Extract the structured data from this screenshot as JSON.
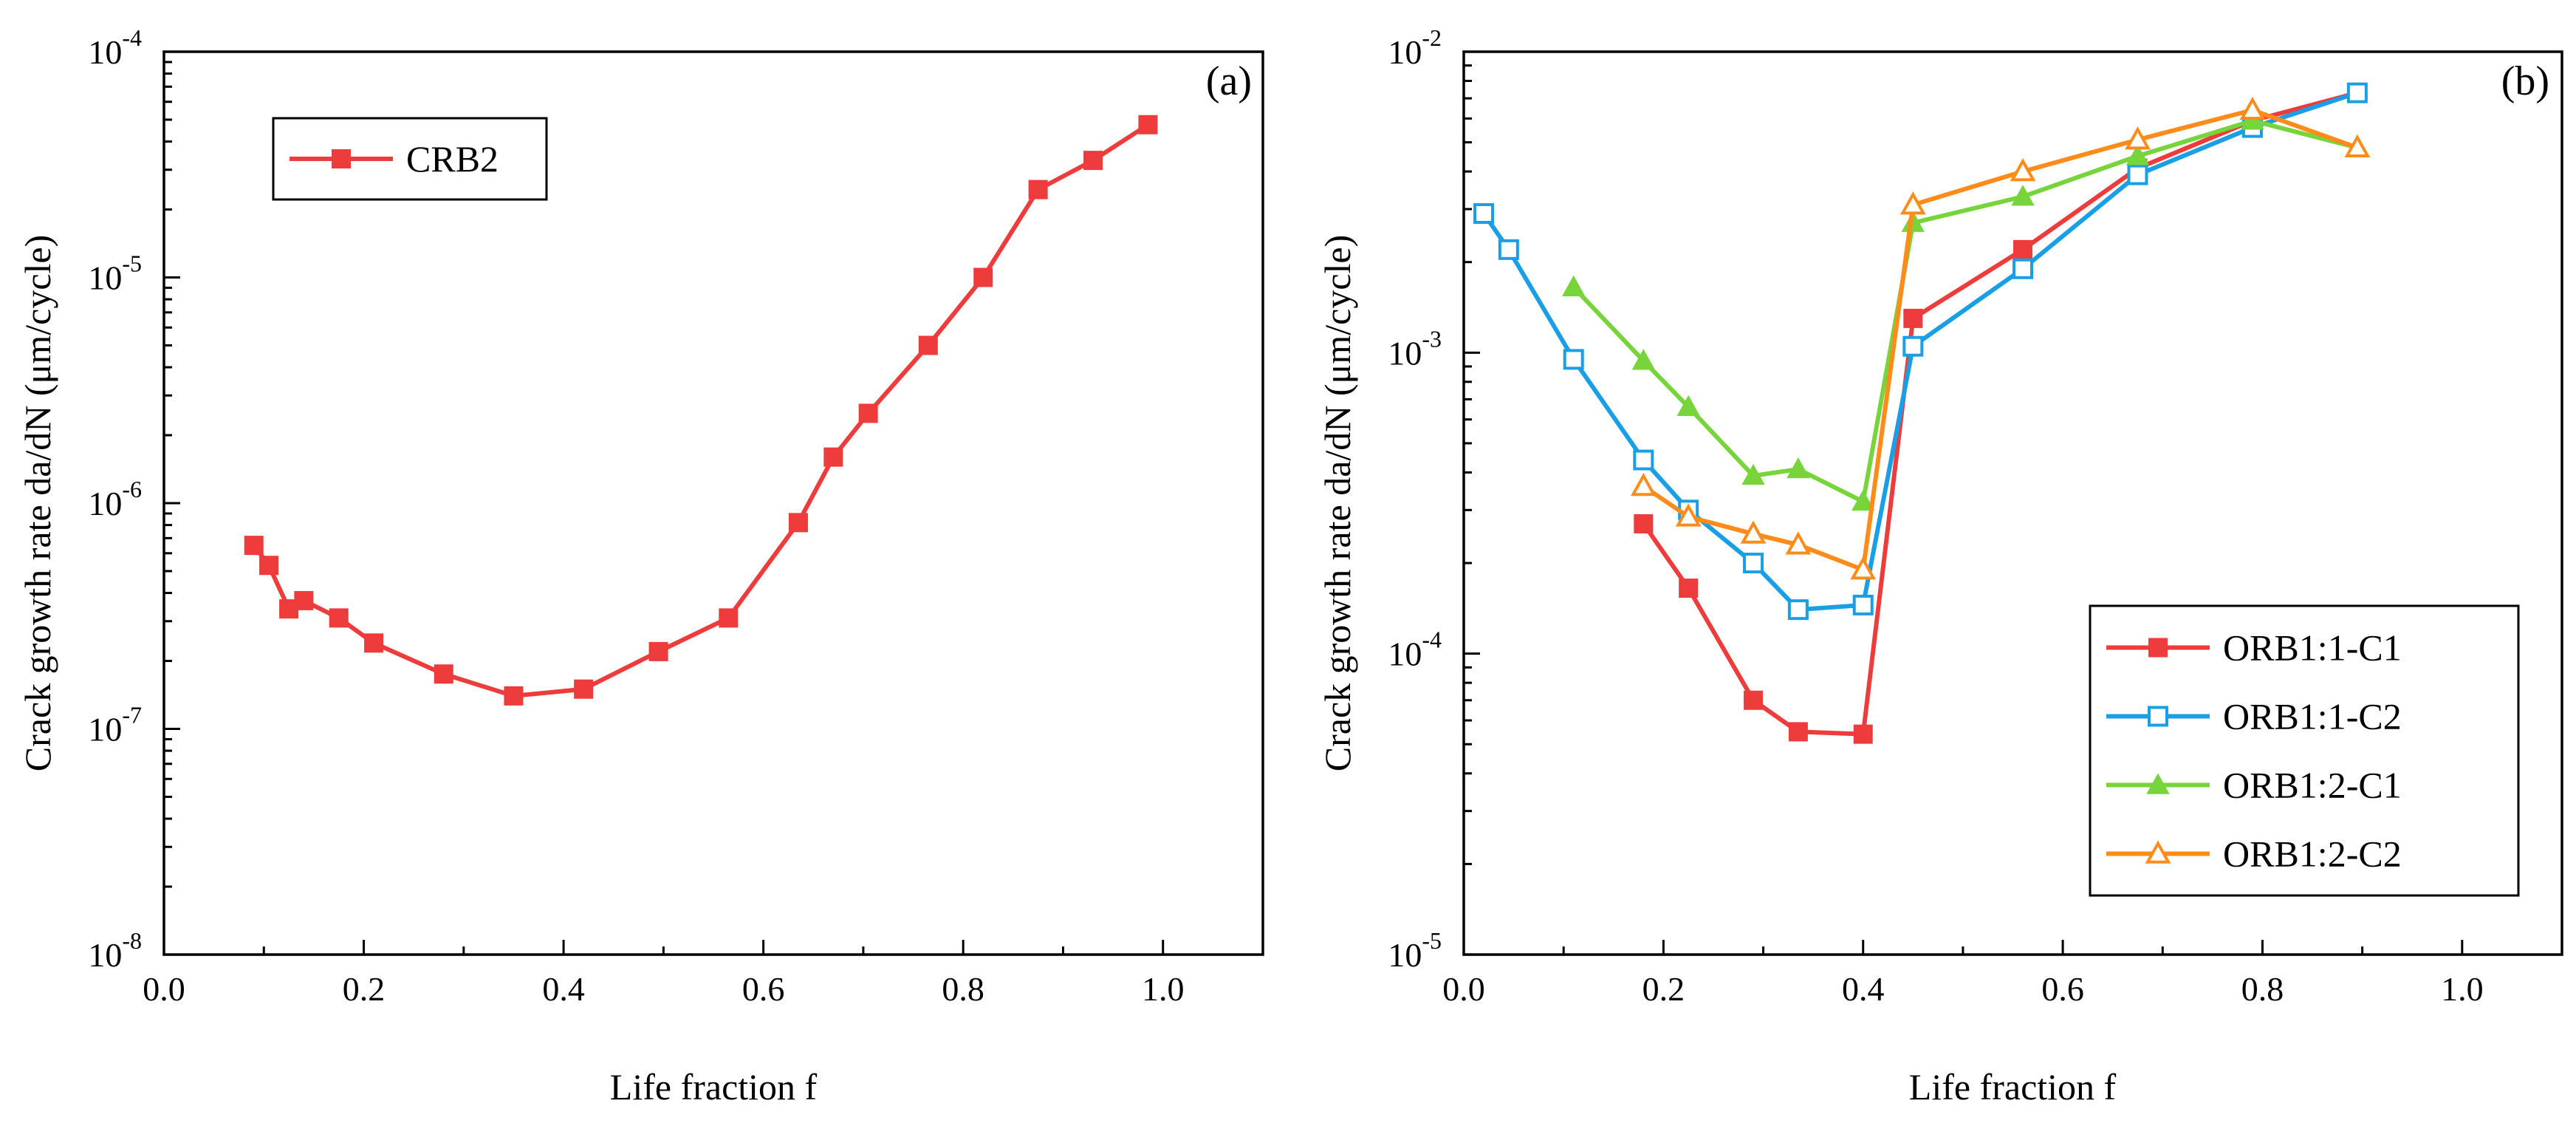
{
  "chart_data": [
    {
      "type": "line",
      "panel_label": "(a)",
      "xlabel": "Life fraction f",
      "ylabel": "Crack growth rate da/dN (μm/cycle)",
      "y_scale": "log",
      "xlim": [
        0.0,
        1.1
      ],
      "ylim": [
        1e-08,
        0.0001
      ],
      "xticks": [
        "0.0",
        "0.2",
        "0.4",
        "0.6",
        "0.8",
        "1.0"
      ],
      "yticks": [
        {
          "base": "10",
          "exp": "-8"
        },
        {
          "base": "10",
          "exp": "-7"
        },
        {
          "base": "10",
          "exp": "-6"
        },
        {
          "base": "10",
          "exp": "-5"
        },
        {
          "base": "10",
          "exp": "-4"
        }
      ],
      "legend_position": "top-left",
      "series": [
        {
          "name": "CRB2",
          "color": "#ee3b3b",
          "marker": "square-filled",
          "x": [
            0.09,
            0.105,
            0.125,
            0.14,
            0.175,
            0.21,
            0.28,
            0.35,
            0.42,
            0.495,
            0.565,
            0.635,
            0.67,
            0.705,
            0.765,
            0.82,
            0.875,
            0.93,
            0.985
          ],
          "y": [
            6.5e-07,
            5.3e-07,
            3.4e-07,
            3.7e-07,
            3.1e-07,
            2.4e-07,
            1.75e-07,
            1.4e-07,
            1.5e-07,
            2.2e-07,
            3.1e-07,
            8.2e-07,
            1.6e-06,
            2.5e-06,
            5e-06,
            1e-05,
            2.45e-05,
            3.3e-05,
            4.75e-05
          ]
        }
      ]
    },
    {
      "type": "line",
      "panel_label": "(b)",
      "xlabel": "Life fraction f",
      "ylabel": "Crack growth rate da/dN (μm/cycle)",
      "y_scale": "log",
      "xlim": [
        0.0,
        1.1
      ],
      "ylim": [
        1e-05,
        0.01
      ],
      "xticks": [
        "0.0",
        "0.2",
        "0.4",
        "0.6",
        "0.8",
        "1.0"
      ],
      "yticks": [
        {
          "base": "10",
          "exp": "-5"
        },
        {
          "base": "10",
          "exp": "-4"
        },
        {
          "base": "10",
          "exp": "-3"
        },
        {
          "base": "10",
          "exp": "-2"
        }
      ],
      "legend_position": "bottom-right",
      "series": [
        {
          "name": "ORB1:1-C1",
          "color": "#ee3b3b",
          "marker": "square-filled",
          "x": [
            0.18,
            0.225,
            0.29,
            0.335,
            0.4,
            0.45,
            0.56,
            0.675,
            0.79,
            0.895
          ],
          "y": [
            0.00027,
            0.000165,
            7e-05,
            5.5e-05,
            5.4e-05,
            0.0013,
            0.0022,
            0.0041,
            0.0059,
            0.0073
          ]
        },
        {
          "name": "ORB1:1-C2",
          "color": "#1a9fe6",
          "marker": "square-open",
          "x": [
            0.02,
            0.045,
            0.11,
            0.18,
            0.225,
            0.29,
            0.335,
            0.4,
            0.45,
            0.56,
            0.675,
            0.79,
            0.895
          ],
          "y": [
            0.0029,
            0.0022,
            0.00095,
            0.00044,
            0.0003,
            0.0002,
            0.00014,
            0.000145,
            0.00105,
            0.0019,
            0.0039,
            0.0056,
            0.0073
          ]
        },
        {
          "name": "ORB1:2-C1",
          "color": "#77d43a",
          "marker": "triangle-filled",
          "x": [
            0.11,
            0.18,
            0.225,
            0.29,
            0.335,
            0.4,
            0.45,
            0.56,
            0.675,
            0.79,
            0.895
          ],
          "y": [
            0.00165,
            0.00094,
            0.00066,
            0.00039,
            0.00041,
            0.00032,
            0.0027,
            0.0033,
            0.0045,
            0.0059,
            0.0048
          ]
        },
        {
          "name": "ORB1:2-C2",
          "color": "#ff8c1a",
          "marker": "triangle-open",
          "x": [
            0.18,
            0.225,
            0.29,
            0.335,
            0.4,
            0.45,
            0.56,
            0.675,
            0.79,
            0.895
          ],
          "y": [
            0.00036,
            0.000285,
            0.00025,
            0.00023,
            0.00019,
            0.0031,
            0.004,
            0.0051,
            0.0064,
            0.0048
          ]
        }
      ]
    }
  ]
}
